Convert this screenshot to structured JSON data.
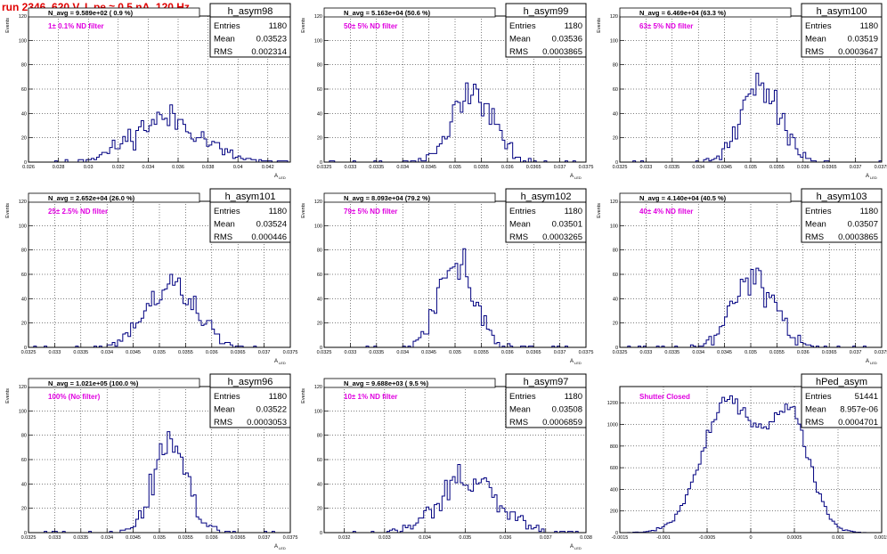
{
  "run_title": "run 2346,   620 V, I_pe ≈ 0.5 nA, 120 Hz",
  "colors": {
    "frame": "#000000",
    "hist_line": "#000080",
    "grid": "#000000",
    "annotation": "#e000e0",
    "title": "#e00000"
  },
  "chart_data": [
    {
      "type": "histogram",
      "title": "h_asym98",
      "navg": "N_avg = 9.589e+02 ( 0.9 %)",
      "note": "1± 0.1% ND filter",
      "ylabel": "Events",
      "xlabel": "A_{LED}",
      "xlim": [
        0.026,
        0.0435
      ],
      "ylim": [
        0,
        120
      ],
      "yticks": [
        "0",
        "20",
        "40",
        "60",
        "80",
        "100",
        "120"
      ],
      "xticks": [
        "0.026",
        "0.028",
        "0.03",
        "0.032",
        "0.034",
        "0.036",
        "0.038",
        "0.04",
        "0.042"
      ],
      "stats": {
        "Entries": "1180",
        "Mean": "0.03523",
        "RMS": "0.002314"
      },
      "shape": {
        "kind": "gauss",
        "mu": 0.0352,
        "sigma": 0.0023,
        "entries": 1180,
        "bins": 100,
        "seed": 11
      }
    },
    {
      "type": "histogram",
      "title": "h_asym99",
      "navg": "N_avg = 5.163e+04 (50.6 %)",
      "note": "50± 5% ND filter",
      "ylabel": "Events",
      "xlabel": "A_{LED}",
      "xlim": [
        0.0325,
        0.0375
      ],
      "ylim": [
        0,
        120
      ],
      "yticks": [
        "0",
        "20",
        "40",
        "60",
        "80",
        "100",
        "120"
      ],
      "xticks": [
        "0.0325",
        "0.033",
        "0.0335",
        "0.034",
        "0.0345",
        "0.035",
        "0.0355",
        "0.036",
        "0.0365",
        "0.037",
        "0.0375"
      ],
      "stats": {
        "Entries": "1180",
        "Mean": "0.03536",
        "RMS": "0.0003865"
      },
      "shape": {
        "kind": "gauss",
        "mu": 0.03536,
        "sigma": 0.00039,
        "entries": 1180,
        "bins": 100,
        "seed": 22
      }
    },
    {
      "type": "histogram",
      "title": "h_asym100",
      "navg": "N_avg = 6.469e+04 (63.3 %)",
      "note": "63± 5% ND filter",
      "ylabel": "Events",
      "xlabel": "A_{LED}",
      "xlim": [
        0.0325,
        0.0375
      ],
      "ylim": [
        0,
        120
      ],
      "yticks": [
        "0",
        "20",
        "40",
        "60",
        "80",
        "100",
        "120"
      ],
      "xticks": [
        "0.0325",
        "0.033",
        "0.0335",
        "0.034",
        "0.0345",
        "0.035",
        "0.0355",
        "0.036",
        "0.0365",
        "0.037",
        "0.0375"
      ],
      "stats": {
        "Entries": "1180",
        "Mean": "0.03519",
        "RMS": "0.0003647"
      },
      "shape": {
        "kind": "gauss",
        "mu": 0.03519,
        "sigma": 0.00036,
        "entries": 1180,
        "bins": 100,
        "seed": 33
      }
    },
    {
      "type": "histogram",
      "title": "h_asym101",
      "navg": "N_avg = 2.652e+04 (26.0 %)",
      "note": "25± 2.5% ND filter",
      "ylabel": "Events",
      "xlabel": "A_{LED}",
      "xlim": [
        0.0325,
        0.0375
      ],
      "ylim": [
        0,
        120
      ],
      "yticks": [
        "0",
        "20",
        "40",
        "60",
        "80",
        "100",
        "120"
      ],
      "xticks": [
        "0.0325",
        "0.033",
        "0.0335",
        "0.034",
        "0.0345",
        "0.035",
        "0.0355",
        "0.036",
        "0.0365",
        "0.037",
        "0.0375"
      ],
      "stats": {
        "Entries": "1180",
        "Mean": "0.03524",
        "RMS": "0.000446"
      },
      "shape": {
        "kind": "gauss",
        "mu": 0.03524,
        "sigma": 0.00045,
        "entries": 1180,
        "bins": 100,
        "seed": 44
      }
    },
    {
      "type": "histogram",
      "title": "h_asym102",
      "navg": "N_avg = 8.093e+04 (79.2 %)",
      "note": "79± 5% ND filter",
      "ylabel": "Events",
      "xlabel": "A_{LED}",
      "xlim": [
        0.0325,
        0.0375
      ],
      "ylim": [
        0,
        120
      ],
      "yticks": [
        "0",
        "20",
        "40",
        "60",
        "80",
        "100",
        "120"
      ],
      "xticks": [
        "0.0325",
        "0.033",
        "0.0335",
        "0.034",
        "0.0345",
        "0.035",
        "0.0355",
        "0.036",
        "0.0365",
        "0.037",
        "0.0375"
      ],
      "stats": {
        "Entries": "1180",
        "Mean": "0.03501",
        "RMS": "0.0003265"
      },
      "shape": {
        "kind": "gauss",
        "mu": 0.03501,
        "sigma": 0.00033,
        "entries": 1180,
        "bins": 100,
        "seed": 55
      }
    },
    {
      "type": "histogram",
      "title": "h_asym103",
      "navg": "N_avg = 4.140e+04 (40.5 %)",
      "note": "40± 4% ND filter",
      "ylabel": "Events",
      "xlabel": "A_{LED}",
      "xlim": [
        0.0325,
        0.0375
      ],
      "ylim": [
        0,
        120
      ],
      "yticks": [
        "0",
        "20",
        "40",
        "60",
        "80",
        "100",
        "120"
      ],
      "xticks": [
        "0.0325",
        "0.033",
        "0.0335",
        "0.034",
        "0.0345",
        "0.035",
        "0.0355",
        "0.036",
        "0.0365",
        "0.037",
        "0.0375"
      ],
      "stats": {
        "Entries": "1180",
        "Mean": "0.03507",
        "RMS": "0.0003865"
      },
      "shape": {
        "kind": "gauss",
        "mu": 0.03507,
        "sigma": 0.00039,
        "entries": 1180,
        "bins": 100,
        "seed": 66
      }
    },
    {
      "type": "histogram",
      "title": "h_asym96",
      "navg": "N_avg = 1.021e+05 (100.0 %)",
      "note": "100% (No filter)",
      "ylabel": "Events",
      "xlabel": "A_{LED}",
      "xlim": [
        0.0325,
        0.0375
      ],
      "ylim": [
        0,
        120
      ],
      "yticks": [
        "0",
        "20",
        "40",
        "60",
        "80",
        "100",
        "120"
      ],
      "xticks": [
        "0.0325",
        "0.033",
        "0.0335",
        "0.034",
        "0.0345",
        "0.035",
        "0.0355",
        "0.036",
        "0.0365",
        "0.037",
        "0.0375"
      ],
      "stats": {
        "Entries": "1180",
        "Mean": "0.03522",
        "RMS": "0.0003053"
      },
      "shape": {
        "kind": "gauss",
        "mu": 0.03522,
        "sigma": 0.00031,
        "entries": 1180,
        "bins": 100,
        "seed": 77
      }
    },
    {
      "type": "histogram",
      "title": "h_asym97",
      "navg": "N_avg = 9.688e+03 ( 9.5 %)",
      "note": "10± 1% ND filter",
      "ylabel": "Events",
      "xlabel": "A_{LED}",
      "xlim": [
        0.0315,
        0.038
      ],
      "ylim": [
        0,
        120
      ],
      "yticks": [
        "0",
        "20",
        "40",
        "60",
        "80",
        "100",
        "120"
      ],
      "xticks": [
        "0.032",
        "0.033",
        "0.034",
        "0.035",
        "0.036",
        "0.037",
        "0.038"
      ],
      "stats": {
        "Entries": "1180",
        "Mean": "0.03508",
        "RMS": "0.0006859"
      },
      "shape": {
        "kind": "gauss",
        "mu": 0.03508,
        "sigma": 0.00069,
        "entries": 1180,
        "bins": 100,
        "seed": 88
      }
    },
    {
      "type": "histogram",
      "title": "hPed_asym",
      "navg": "",
      "note": "Shutter Closed",
      "ylabel": "",
      "xlabel": "",
      "xlim": [
        -0.0015,
        0.0015
      ],
      "ylim": [
        0,
        1350
      ],
      "yticks": [
        "0",
        "200",
        "400",
        "600",
        "800",
        "1000",
        "1200"
      ],
      "xticks": [
        "-0.0015",
        "-0.001",
        "-0.0005",
        "0",
        "0.0005",
        "0.001",
        "0.0015"
      ],
      "stats": {
        "Entries": "51441",
        "Mean": "8.957e-06",
        "RMS": "0.0004701"
      },
      "shape": {
        "kind": "bimodal",
        "mu1": -0.00025,
        "s1": 0.0003,
        "w1": 0.6,
        "mu2": 0.00045,
        "s2": 0.00023,
        "w2": 0.4,
        "entries": 51441,
        "bins": 100,
        "seed": 99
      }
    }
  ]
}
